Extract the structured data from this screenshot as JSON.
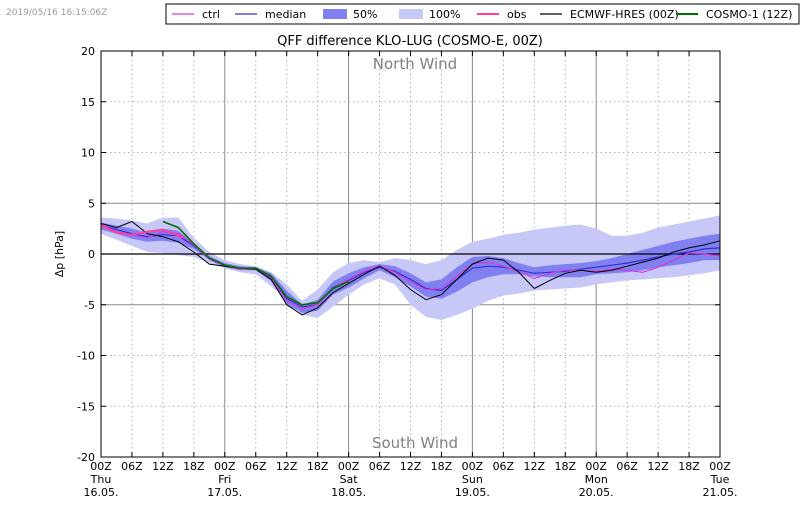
{
  "timestamp": "2019/05/16 16:15:06Z",
  "chart_data": {
    "type": "line",
    "title": "QFF difference KLO-LUG (COSMO-E, 00Z)",
    "ylabel": "Δp [hPa]",
    "xlabel": "",
    "ylim": [
      -20,
      20
    ],
    "xlim_hours": [
      0,
      120
    ],
    "y_ticks": [
      20,
      15,
      10,
      5,
      0,
      -5,
      -10,
      -15,
      -20
    ],
    "x_ticks": [
      {
        "h": 0,
        "l1": "00Z",
        "l2": "Thu",
        "l3": "16.05."
      },
      {
        "h": 6,
        "l1": "06Z"
      },
      {
        "h": 12,
        "l1": "12Z"
      },
      {
        "h": 18,
        "l1": "18Z"
      },
      {
        "h": 24,
        "l1": "00Z",
        "l2": "Fri",
        "l3": "17.05."
      },
      {
        "h": 30,
        "l1": "06Z"
      },
      {
        "h": 36,
        "l1": "12Z"
      },
      {
        "h": 42,
        "l1": "18Z"
      },
      {
        "h": 48,
        "l1": "00Z",
        "l2": "Sat",
        "l3": "18.05."
      },
      {
        "h": 54,
        "l1": "06Z"
      },
      {
        "h": 60,
        "l1": "12Z"
      },
      {
        "h": 66,
        "l1": "18Z"
      },
      {
        "h": 72,
        "l1": "00Z",
        "l2": "Sun",
        "l3": "19.05."
      },
      {
        "h": 78,
        "l1": "06Z"
      },
      {
        "h": 84,
        "l1": "12Z"
      },
      {
        "h": 90,
        "l1": "18Z"
      },
      {
        "h": 96,
        "l1": "00Z",
        "l2": "Mon",
        "l3": "20.05."
      },
      {
        "h": 102,
        "l1": "06Z"
      },
      {
        "h": 108,
        "l1": "12Z"
      },
      {
        "h": 114,
        "l1": "18Z"
      },
      {
        "h": 120,
        "l1": "00Z",
        "l2": "Tue",
        "l3": "21.05."
      }
    ],
    "annotations": {
      "top": "North Wind",
      "bottom": "South Wind"
    },
    "legend": [
      {
        "key": "ctrl",
        "label": "ctrl",
        "kind": "line",
        "color": "#d63ad6"
      },
      {
        "key": "median",
        "label": "median",
        "kind": "line",
        "color": "#3030d0"
      },
      {
        "key": "p50",
        "label": "50%",
        "kind": "patch",
        "color": "#8080f0"
      },
      {
        "key": "p100",
        "label": "100%",
        "kind": "patch",
        "color": "#c8c8f8"
      },
      {
        "key": "obs",
        "label": "obs",
        "kind": "line",
        "color": "#ff3fa0"
      },
      {
        "key": "ecmwf",
        "label": "ECMWF-HRES (00Z)",
        "kind": "line",
        "color": "#000000"
      },
      {
        "key": "cosmo1",
        "label": "COSMO-1 (12Z)",
        "kind": "line",
        "color": "#007000"
      }
    ],
    "series": {
      "hours": [
        0,
        3,
        6,
        9,
        12,
        15,
        18,
        21,
        24,
        27,
        30,
        33,
        36,
        39,
        42,
        45,
        48,
        51,
        54,
        57,
        60,
        63,
        66,
        69,
        72,
        75,
        78,
        81,
        84,
        87,
        90,
        93,
        96,
        99,
        102,
        105,
        108,
        111,
        114,
        117,
        120
      ],
      "band100_low": [
        2.0,
        1.4,
        0.8,
        0.2,
        0.1,
        -0.1,
        -0.3,
        -0.9,
        -1.4,
        -1.8,
        -2.0,
        -3.2,
        -4.4,
        -6.0,
        -6.3,
        -5.2,
        -4.0,
        -3.0,
        -2.4,
        -3.0,
        -5.0,
        -6.2,
        -6.5,
        -6.0,
        -5.4,
        -4.6,
        -4.1,
        -3.9,
        -3.6,
        -3.5,
        -3.4,
        -3.3,
        -3.0,
        -2.8,
        -2.6,
        -2.5,
        -2.4,
        -2.3,
        -2.1,
        -1.9,
        -1.6
      ],
      "band100_high": [
        3.6,
        3.5,
        3.3,
        3.0,
        3.6,
        3.6,
        1.6,
        0.2,
        -0.6,
        -1.0,
        -1.2,
        -1.8,
        -3.0,
        -4.6,
        -3.5,
        -1.8,
        -0.9,
        -0.6,
        -0.8,
        -0.4,
        -0.6,
        -1.0,
        -0.6,
        0.4,
        1.2,
        1.5,
        1.9,
        2.1,
        2.4,
        2.6,
        2.8,
        2.9,
        2.5,
        1.8,
        1.8,
        2.1,
        2.6,
        2.9,
        3.2,
        3.5,
        3.8
      ],
      "band50_low": [
        2.4,
        2.0,
        1.5,
        1.2,
        1.3,
        1.1,
        0.5,
        -0.6,
        -1.3,
        -1.6,
        -1.6,
        -2.7,
        -5.0,
        -5.8,
        -5.6,
        -4.0,
        -3.3,
        -2.4,
        -1.6,
        -2.3,
        -3.2,
        -4.2,
        -4.4,
        -3.7,
        -2.8,
        -2.3,
        -2.0,
        -2.0,
        -2.2,
        -2.3,
        -2.3,
        -2.3,
        -2.0,
        -1.9,
        -1.8,
        -1.6,
        -1.3,
        -1.1,
        -0.9,
        -0.6,
        -0.6
      ],
      "band50_high": [
        3.1,
        2.8,
        2.5,
        2.1,
        2.5,
        2.3,
        1.0,
        -0.2,
        -0.9,
        -1.2,
        -1.3,
        -1.9,
        -3.6,
        -5.0,
        -4.5,
        -2.7,
        -1.9,
        -1.3,
        -1.0,
        -1.2,
        -1.9,
        -2.8,
        -2.5,
        -1.3,
        -0.3,
        -0.2,
        -0.4,
        -0.9,
        -1.3,
        -1.1,
        -1.0,
        -0.9,
        -0.7,
        -0.4,
        0.0,
        0.4,
        0.8,
        1.2,
        1.5,
        1.8,
        2.0
      ],
      "median": [
        2.8,
        2.4,
        2.0,
        1.7,
        1.9,
        1.8,
        0.8,
        -0.4,
        -1.1,
        -1.4,
        -1.4,
        -2.3,
        -4.4,
        -5.2,
        -5.0,
        -3.3,
        -2.6,
        -1.8,
        -1.3,
        -1.7,
        -2.5,
        -3.4,
        -3.6,
        -2.5,
        -1.4,
        -1.2,
        -1.3,
        -1.6,
        -1.9,
        -1.8,
        -1.7,
        -1.5,
        -1.3,
        -1.1,
        -0.9,
        -0.6,
        -0.3,
        0.0,
        0.2,
        0.5,
        0.6
      ],
      "ctrl": [
        2.9,
        2.2,
        1.9,
        1.6,
        2.2,
        2.0,
        0.9,
        -0.5,
        -1.2,
        -1.5,
        -1.5,
        -2.4,
        -4.6,
        -5.4,
        -5.0,
        -3.4,
        -2.5,
        -1.7,
        -1.2,
        -1.8,
        -2.7,
        -3.5,
        -3.4,
        -2.2,
        -1.0,
        -0.8,
        -1.2,
        -1.7,
        -2.4,
        -1.9,
        -1.6,
        -1.6,
        -1.7,
        -1.5,
        -1.6,
        -1.8,
        -1.3,
        -0.6,
        0.1,
        0.0,
        -0.2
      ],
      "ecmwf": [
        3.0,
        2.6,
        3.2,
        2.0,
        1.7,
        1.2,
        0.2,
        -1.0,
        -1.2,
        -1.4,
        -1.5,
        -2.5,
        -5.0,
        -6.0,
        -5.3,
        -3.8,
        -2.9,
        -2.0,
        -1.2,
        -2.1,
        -3.5,
        -4.5,
        -4.0,
        -2.5,
        -1.0,
        -0.4,
        -0.6,
        -1.8,
        -3.4,
        -2.6,
        -1.9,
        -1.6,
        -1.8,
        -1.6,
        -1.2,
        -0.8,
        -0.4,
        0.2,
        0.6,
        0.9,
        1.3
      ],
      "cosmo1_hours": [
        12,
        15,
        18,
        21,
        24,
        27,
        30,
        33,
        36,
        39,
        42,
        45,
        48
      ],
      "cosmo1": [
        3.2,
        2.6,
        1.0,
        -0.4,
        -1.1,
        -1.4,
        -1.4,
        -2.2,
        -4.2,
        -5.0,
        -4.8,
        -3.4,
        -2.7
      ],
      "obs_hours": [
        0,
        3,
        6,
        9,
        12,
        15,
        16
      ],
      "obs": [
        2.8,
        2.1,
        1.9,
        2.2,
        2.4,
        1.8,
        1.6
      ]
    }
  }
}
